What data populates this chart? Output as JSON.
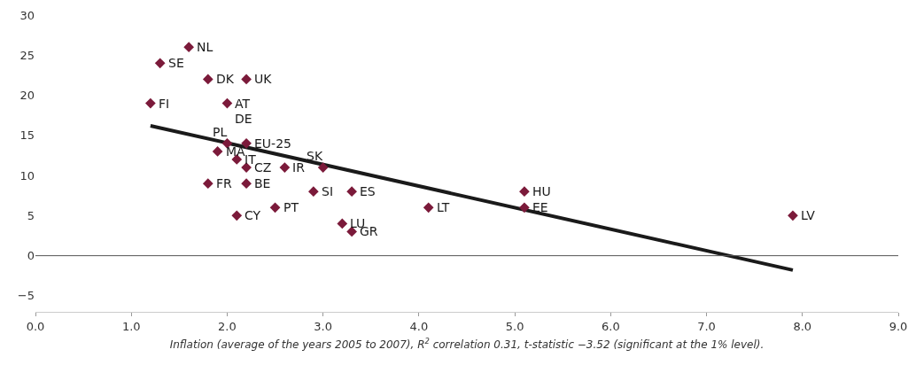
{
  "chart_data": {
    "type": "scatter",
    "xlabel": "Inflation (average of the years 2005 to 2007), R$^{2}$ correlation 0.31, t-statistic −3.52 (significant at the 1% level).",
    "series": [
      {
        "color": "#7b1a3a",
        "marker": "diamond",
        "x": [
          1.6,
          1.3,
          1.8,
          2.2,
          1.2,
          2.0,
          2.0,
          2.2,
          1.9,
          2.1,
          2.2,
          2.6,
          3.0,
          1.8,
          2.2,
          2.9,
          3.3,
          5.1,
          2.1,
          2.5,
          4.1,
          5.1,
          3.2,
          3.3,
          7.9
        ],
        "values": [
          26,
          24,
          22,
          22,
          19,
          19,
          14,
          14,
          13,
          12,
          11,
          11,
          11,
          9,
          9,
          8,
          8,
          8,
          5,
          6,
          6,
          6,
          4,
          3,
          5
        ]
      },
      {
        "type": "line",
        "color": "#1a1a1a",
        "x": [
          1.2,
          7.9
        ],
        "values": [
          16.2,
          -1.8
        ]
      }
    ],
    "annotations": [
      {
        "text": "NL",
        "x": 1.6,
        "y": 26
      },
      {
        "text": "SE",
        "x": 1.3,
        "y": 24
      },
      {
        "text": "DK",
        "x": 1.8,
        "y": 22
      },
      {
        "text": "UK",
        "x": 2.2,
        "y": 22
      },
      {
        "text": "FI",
        "x": 1.2,
        "y": 19
      },
      {
        "text": "AT",
        "x": 2.0,
        "y": 19
      },
      {
        "text": "DE",
        "x": 2.0,
        "y": 19
      },
      {
        "text": "PL",
        "x": 2.0,
        "y": 14
      },
      {
        "text": "EU-25",
        "x": 2.2,
        "y": 14
      },
      {
        "text": "MA",
        "x": 1.9,
        "y": 13
      },
      {
        "text": "IT",
        "x": 2.1,
        "y": 12
      },
      {
        "text": "CZ",
        "x": 2.2,
        "y": 11
      },
      {
        "text": "IR",
        "x": 2.6,
        "y": 11
      },
      {
        "text": "SK",
        "x": 3.0,
        "y": 11
      },
      {
        "text": "FR",
        "x": 1.8,
        "y": 9
      },
      {
        "text": "BE",
        "x": 2.2,
        "y": 9
      },
      {
        "text": "SI",
        "x": 2.9,
        "y": 8
      },
      {
        "text": "ES",
        "x": 3.3,
        "y": 8
      },
      {
        "text": "HU",
        "x": 5.1,
        "y": 8
      },
      {
        "text": "CY",
        "x": 2.1,
        "y": 5
      },
      {
        "text": "PT",
        "x": 2.5,
        "y": 6
      },
      {
        "text": "LT",
        "x": 4.1,
        "y": 6
      },
      {
        "text": "EE",
        "x": 5.1,
        "y": 6
      },
      {
        "text": "LU",
        "x": 3.2,
        "y": 4
      },
      {
        "text": "GR",
        "x": 3.3,
        "y": 3
      },
      {
        "text": "LV",
        "x": 7.9,
        "y": 5
      }
    ],
    "ref_lines": [
      {
        "axis": "y",
        "value": 0,
        "color": "#555555"
      }
    ],
    "xlim": [
      0,
      9
    ],
    "xticks": [
      {
        "value": 0,
        "label": "0.0"
      },
      {
        "value": 1,
        "label": "1.0"
      },
      {
        "value": 2,
        "label": "2.0"
      },
      {
        "value": 3,
        "label": "3.0"
      },
      {
        "value": 4,
        "label": "4.0"
      },
      {
        "value": 5,
        "label": "5.0"
      },
      {
        "value": 6,
        "label": "6.0"
      },
      {
        "value": 7,
        "label": "7.0"
      },
      {
        "value": 8,
        "label": "8.0"
      },
      {
        "value": 9,
        "label": "9.0"
      }
    ],
    "ylim": [
      -7,
      30
    ],
    "yticks": [
      {
        "value": -5,
        "label": "−5"
      },
      0,
      5,
      10,
      15,
      20,
      25,
      30
    ]
  }
}
